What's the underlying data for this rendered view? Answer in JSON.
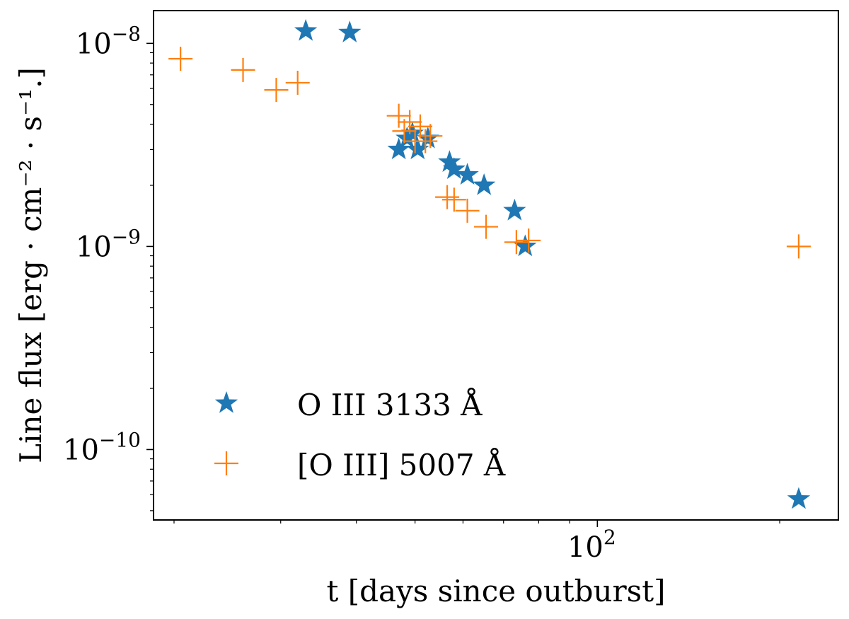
{
  "chart_data": {
    "type": "scatter",
    "title": "",
    "xlabel": "t [days since outburst]",
    "ylabel": "Line flux [erg · cm⁻² · s⁻¹.]",
    "x_scale": "log",
    "y_scale": "log",
    "xlim": [
      18.5,
      250
    ],
    "ylim": [
      4.5e-11,
      1.45e-08
    ],
    "grid": false,
    "legend_position": "lower-left",
    "x_ticks": [
      {
        "value": 100,
        "base": "10",
        "exponent": "2"
      }
    ],
    "y_ticks": [
      {
        "value": 1e-10,
        "base": "10",
        "exponent": "−10"
      },
      {
        "value": 1e-09,
        "base": "10",
        "exponent": "−9"
      },
      {
        "value": 1e-08,
        "base": "10",
        "exponent": "−8"
      }
    ],
    "series": [
      {
        "name": "O III 3133 Å",
        "marker": "star",
        "color": "#1f77b4",
        "points": [
          {
            "x": 33.0,
            "y": 1.15e-08
          },
          {
            "x": 39.0,
            "y": 1.13e-08
          },
          {
            "x": 47.0,
            "y": 3e-09
          },
          {
            "x": 48.5,
            "y": 3.4e-09
          },
          {
            "x": 49.5,
            "y": 3.6e-09
          },
          {
            "x": 50.5,
            "y": 3e-09
          },
          {
            "x": 52.5,
            "y": 3.4e-09
          },
          {
            "x": 57.0,
            "y": 2.6e-09
          },
          {
            "x": 58.0,
            "y": 2.4e-09
          },
          {
            "x": 61.0,
            "y": 2.25e-09
          },
          {
            "x": 65.0,
            "y": 2e-09
          },
          {
            "x": 73.0,
            "y": 1.5e-09
          },
          {
            "x": 76.0,
            "y": 1e-09
          },
          {
            "x": 215.0,
            "y": 5.7e-11
          }
        ]
      },
      {
        "name": "[O III] 5007 Å",
        "marker": "plus",
        "color": "#ff7f0e",
        "points": [
          {
            "x": 20.5,
            "y": 8.4e-09
          },
          {
            "x": 26.0,
            "y": 7.4e-09
          },
          {
            "x": 29.5,
            "y": 5.9e-09
          },
          {
            "x": 32.0,
            "y": 6.4e-09
          },
          {
            "x": 47.0,
            "y": 4.4e-09
          },
          {
            "x": 48.0,
            "y": 3.7e-09
          },
          {
            "x": 49.0,
            "y": 4.1e-09
          },
          {
            "x": 50.0,
            "y": 3.3e-09
          },
          {
            "x": 51.0,
            "y": 3.9e-09
          },
          {
            "x": 52.0,
            "y": 3.3e-09
          },
          {
            "x": 53.0,
            "y": 3.5e-09
          },
          {
            "x": 56.5,
            "y": 1.75e-09
          },
          {
            "x": 58.0,
            "y": 1.7e-09
          },
          {
            "x": 61.0,
            "y": 1.5e-09
          },
          {
            "x": 65.5,
            "y": 1.25e-09
          },
          {
            "x": 73.5,
            "y": 1.05e-09
          },
          {
            "x": 77.0,
            "y": 1.07e-09
          },
          {
            "x": 215.0,
            "y": 1e-09
          }
        ]
      }
    ]
  }
}
